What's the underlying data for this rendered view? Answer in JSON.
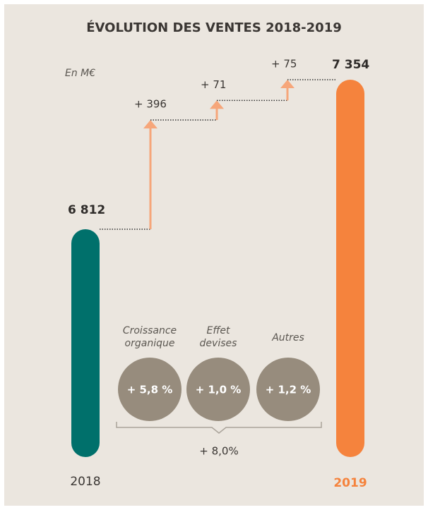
{
  "chart_data": {
    "type": "waterfall",
    "title": "ÉVOLUTION DES VENTES 2018-2019",
    "unit_label": "En M€",
    "categories": [
      "2018",
      "Croissance organique",
      "Effet devises",
      "Autres",
      "2019"
    ],
    "values": [
      6812,
      396,
      71,
      75,
      7354
    ],
    "value_labels": [
      "6 812",
      "+ 396",
      "+ 71",
      "+ 75",
      "7 354"
    ],
    "shares": {
      "values": [
        5.8,
        1.0,
        1.2
      ],
      "value_labels": [
        "+ 5,8 %",
        "+ 1,0 %",
        "+ 1,2 %"
      ]
    },
    "total_share": {
      "value": 8.0,
      "label": "+ 8,0%"
    },
    "colors": {
      "start": "#00706b",
      "end": "#f5833d",
      "step": "#f6a67a",
      "circle": "#978c7d",
      "background": "#ebe6df"
    }
  }
}
